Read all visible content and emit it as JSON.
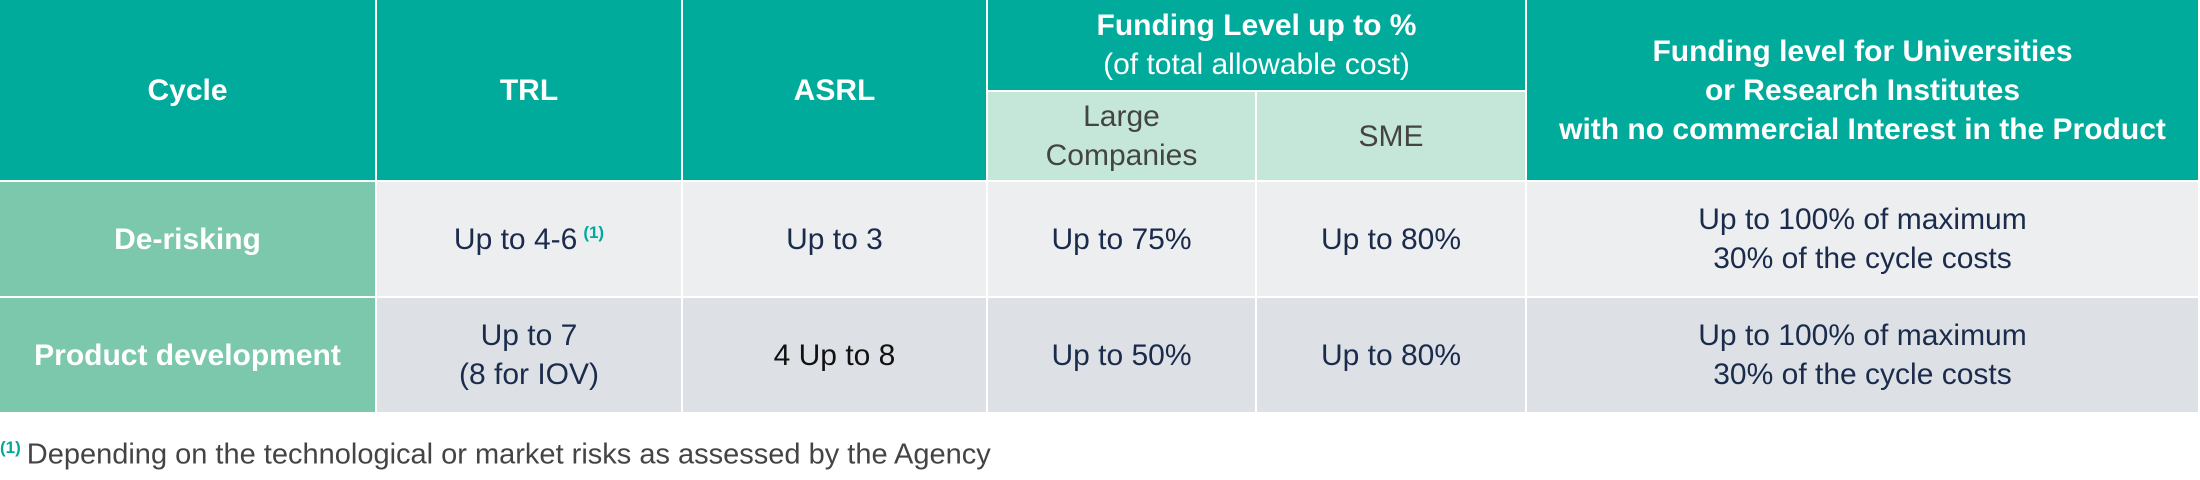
{
  "table": {
    "headers": {
      "cycle": "Cycle",
      "trl": "TRL",
      "asrl": "ASRL",
      "funding": {
        "title": "Funding Level up to %",
        "subtitle": "(of total allowable cost)",
        "large": [
          "Large",
          "Companies"
        ],
        "sme": "SME"
      },
      "universities": [
        "Funding level for Universities",
        "or Research Institutes",
        "with no commercial Interest in the Product"
      ]
    },
    "rows": [
      {
        "cycle": "De-risking",
        "trl": [
          "Up to 4-6"
        ],
        "trl_note": "(1)",
        "asrl": "Up to 3",
        "large": "Up to 75%",
        "sme": "Up to 80%",
        "universities": [
          "Up to 100% of maximum",
          "30% of the cycle costs"
        ]
      },
      {
        "cycle": "Product development",
        "trl": [
          "Up to 7",
          "(8 for IOV)"
        ],
        "asrl": "4 Up to 8",
        "large": "Up to 50%",
        "sme": "Up to 80%",
        "universities": [
          "Up to 100% of maximum",
          "30% of the cycle costs"
        ]
      }
    ]
  },
  "footnote": {
    "marker": "(1)",
    "text": "Depending on the technological or market risks as assessed by the Agency"
  }
}
